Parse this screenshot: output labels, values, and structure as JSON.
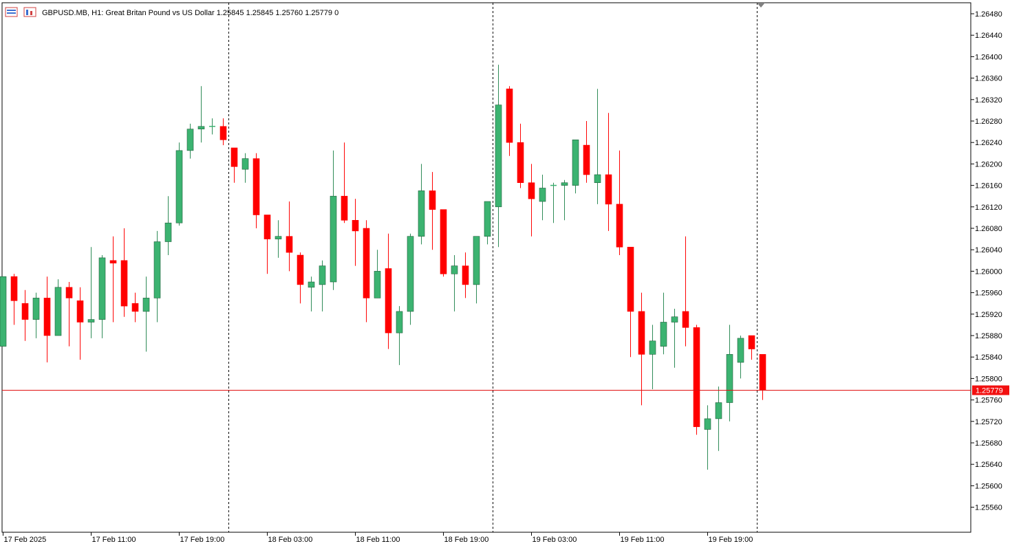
{
  "header": {
    "symbol": "GBPUSD.MB",
    "timeframe": "H1",
    "description": "Great Britan Pound vs US Dollar",
    "ohlc": [
      "1.25845",
      "1.25845",
      "1.25760",
      "1.25779"
    ],
    "tick_volume": "0"
  },
  "current_price_label": "1.25779",
  "colors": {
    "bull": "#3cb371",
    "bear": "#ff0000",
    "border": "#000000",
    "price_line": "#e01010"
  },
  "chart_data": {
    "type": "candlestick",
    "y_axis_side": "right",
    "ylim": [
      1.2552,
      1.2652
    ],
    "y_ticks": [
      "1.26480",
      "1.26440",
      "1.26400",
      "1.26360",
      "1.26320",
      "1.26280",
      "1.26240",
      "1.26200",
      "1.26160",
      "1.26120",
      "1.26080",
      "1.26040",
      "1.26000",
      "1.25960",
      "1.25920",
      "1.25880",
      "1.25840",
      "1.25800",
      "1.25760",
      "1.25720",
      "1.25680",
      "1.25640",
      "1.25600",
      "1.25560"
    ],
    "x_labels": [
      {
        "bar": 0,
        "text": "17 Feb 2025"
      },
      {
        "bar": 8,
        "text": "17 Feb 11:00"
      },
      {
        "bar": 16,
        "text": "17 Feb 19:00"
      },
      {
        "bar": 24,
        "text": "18 Feb 03:00"
      },
      {
        "bar": 32,
        "text": "18 Feb 11:00"
      },
      {
        "bar": 40,
        "text": "18 Feb 19:00"
      },
      {
        "bar": 48,
        "text": "19 Feb 03:00"
      },
      {
        "bar": 56,
        "text": "19 Feb 11:00"
      },
      {
        "bar": 64,
        "text": "19 Feb 19:00"
      }
    ],
    "period_separators_after_bar": [
      20.5,
      44.5,
      68.5
    ],
    "current_price": 1.25779,
    "candles": [
      {
        "o": 1.2586,
        "h": 1.2599,
        "l": 1.2586,
        "c": 1.2599
      },
      {
        "o": 1.2599,
        "h": 1.25995,
        "l": 1.259,
        "c": 1.25945
      },
      {
        "o": 1.2594,
        "h": 1.25965,
        "l": 1.2587,
        "c": 1.2591
      },
      {
        "o": 1.2591,
        "h": 1.2596,
        "l": 1.25875,
        "c": 1.2595
      },
      {
        "o": 1.2595,
        "h": 1.2599,
        "l": 1.2583,
        "c": 1.2588
      },
      {
        "o": 1.2588,
        "h": 1.25985,
        "l": 1.2588,
        "c": 1.2597
      },
      {
        "o": 1.2597,
        "h": 1.2598,
        "l": 1.2586,
        "c": 1.2595
      },
      {
        "o": 1.25945,
        "h": 1.2597,
        "l": 1.25835,
        "c": 1.25905
      },
      {
        "o": 1.25905,
        "h": 1.26045,
        "l": 1.25875,
        "c": 1.2591
      },
      {
        "o": 1.2591,
        "h": 1.2603,
        "l": 1.25875,
        "c": 1.26025
      },
      {
        "o": 1.2602,
        "h": 1.26065,
        "l": 1.25905,
        "c": 1.26015
      },
      {
        "o": 1.2602,
        "h": 1.2608,
        "l": 1.25915,
        "c": 1.25935
      },
      {
        "o": 1.2594,
        "h": 1.2596,
        "l": 1.25905,
        "c": 1.25925
      },
      {
        "o": 1.25925,
        "h": 1.2599,
        "l": 1.2585,
        "c": 1.2595
      },
      {
        "o": 1.2595,
        "h": 1.26075,
        "l": 1.25905,
        "c": 1.26055
      },
      {
        "o": 1.26055,
        "h": 1.2614,
        "l": 1.2603,
        "c": 1.2609
      },
      {
        "o": 1.2609,
        "h": 1.2624,
        "l": 1.26085,
        "c": 1.26225
      },
      {
        "o": 1.26225,
        "h": 1.26275,
        "l": 1.2621,
        "c": 1.26265
      },
      {
        "o": 1.26265,
        "h": 1.26345,
        "l": 1.2624,
        "c": 1.2627
      },
      {
        "o": 1.2627,
        "h": 1.26285,
        "l": 1.26255,
        "c": 1.2627
      },
      {
        "o": 1.2627,
        "h": 1.26285,
        "l": 1.26235,
        "c": 1.26245
      }
    ],
    "candles_b": [
      {
        "o": 1.2623,
        "h": 1.2623,
        "l": 1.26165,
        "c": 1.26195
      },
      {
        "o": 1.2619,
        "h": 1.2622,
        "l": 1.26165,
        "c": 1.2621
      },
      {
        "o": 1.2621,
        "h": 1.2622,
        "l": 1.2608,
        "c": 1.26105
      },
      {
        "o": 1.26105,
        "h": 1.26105,
        "l": 1.25995,
        "c": 1.2606
      },
      {
        "o": 1.2606,
        "h": 1.26095,
        "l": 1.26025,
        "c": 1.26065
      },
      {
        "o": 1.26065,
        "h": 1.2613,
        "l": 1.26,
        "c": 1.26035
      },
      {
        "o": 1.2603,
        "h": 1.26035,
        "l": 1.2594,
        "c": 1.25975
      },
      {
        "o": 1.2597,
        "h": 1.2599,
        "l": 1.25925,
        "c": 1.2598
      },
      {
        "o": 1.25975,
        "h": 1.2602,
        "l": 1.25925,
        "c": 1.2601
      },
      {
        "o": 1.2598,
        "h": 1.26225,
        "l": 1.25965,
        "c": 1.2614
      },
      {
        "o": 1.2614,
        "h": 1.2624,
        "l": 1.2609,
        "c": 1.26095
      },
      {
        "o": 1.26095,
        "h": 1.26135,
        "l": 1.2601,
        "c": 1.26075
      },
      {
        "o": 1.2608,
        "h": 1.26095,
        "l": 1.25905,
        "c": 1.2595
      },
      {
        "o": 1.2595,
        "h": 1.2604,
        "l": 1.2595,
        "c": 1.26
      },
      {
        "o": 1.26005,
        "h": 1.2607,
        "l": 1.25855,
        "c": 1.25885
      },
      {
        "o": 1.25885,
        "h": 1.25935,
        "l": 1.25825,
        "c": 1.25925
      },
      {
        "o": 1.25925,
        "h": 1.2607,
        "l": 1.259,
        "c": 1.26065
      },
      {
        "o": 1.26065,
        "h": 1.262,
        "l": 1.2605,
        "c": 1.2615
      },
      {
        "o": 1.2615,
        "h": 1.26185,
        "l": 1.2604,
        "c": 1.26115
      },
      {
        "o": 1.26115,
        "h": 1.26115,
        "l": 1.2599,
        "c": 1.25995
      },
      {
        "o": 1.25995,
        "h": 1.2603,
        "l": 1.25925,
        "c": 1.2601
      },
      {
        "o": 1.2601,
        "h": 1.26035,
        "l": 1.2595,
        "c": 1.25975
      },
      {
        "o": 1.25975,
        "h": 1.2606,
        "l": 1.2594,
        "c": 1.26065
      },
      {
        "o": 1.26065,
        "h": 1.2613,
        "l": 1.2605,
        "c": 1.2613
      }
    ],
    "candles_c": [
      {
        "o": 1.2612,
        "h": 1.26385,
        "l": 1.26045,
        "c": 1.2631
      },
      {
        "o": 1.2634,
        "h": 1.26345,
        "l": 1.26215,
        "c": 1.2624
      },
      {
        "o": 1.2624,
        "h": 1.26275,
        "l": 1.26155,
        "c": 1.26165
      },
      {
        "o": 1.26165,
        "h": 1.262,
        "l": 1.26065,
        "c": 1.26135
      },
      {
        "o": 1.2613,
        "h": 1.2618,
        "l": 1.26095,
        "c": 1.26155
      },
      {
        "o": 1.2616,
        "h": 1.26165,
        "l": 1.2609,
        "c": 1.2616
      },
      {
        "o": 1.2616,
        "h": 1.2617,
        "l": 1.26095,
        "c": 1.26165
      },
      {
        "o": 1.2616,
        "h": 1.26245,
        "l": 1.26145,
        "c": 1.26245
      },
      {
        "o": 1.26235,
        "h": 1.2628,
        "l": 1.26165,
        "c": 1.2618
      },
      {
        "o": 1.26165,
        "h": 1.2634,
        "l": 1.26125,
        "c": 1.2618
      },
      {
        "o": 1.2618,
        "h": 1.26295,
        "l": 1.26075,
        "c": 1.26125
      },
      {
        "o": 1.26125,
        "h": 1.26225,
        "l": 1.2603,
        "c": 1.26045
      },
      {
        "o": 1.26045,
        "h": 1.26045,
        "l": 1.2584,
        "c": 1.25925
      },
      {
        "o": 1.25925,
        "h": 1.2596,
        "l": 1.2575,
        "c": 1.25845
      },
      {
        "o": 1.25845,
        "h": 1.259,
        "l": 1.2578,
        "c": 1.2587
      },
      {
        "o": 1.2586,
        "h": 1.2596,
        "l": 1.25845,
        "c": 1.25905
      },
      {
        "o": 1.25905,
        "h": 1.2593,
        "l": 1.2582,
        "c": 1.25915
      },
      {
        "o": 1.25925,
        "h": 1.26065,
        "l": 1.2586,
        "c": 1.25895
      },
      {
        "o": 1.25895,
        "h": 1.259,
        "l": 1.25695,
        "c": 1.2571
      },
      {
        "o": 1.25705,
        "h": 1.2575,
        "l": 1.2563,
        "c": 1.25725
      },
      {
        "o": 1.25725,
        "h": 1.25785,
        "l": 1.25665,
        "c": 1.25755
      },
      {
        "o": 1.25755,
        "h": 1.259,
        "l": 1.2572,
        "c": 1.25845
      },
      {
        "o": 1.2583,
        "h": 1.2588,
        "l": 1.258,
        "c": 1.25875
      },
      {
        "o": 1.2588,
        "h": 1.2588,
        "l": 1.25835,
        "c": 1.25855
      },
      {
        "o": 1.25845,
        "h": 1.25845,
        "l": 1.2576,
        "c": 1.25779
      }
    ]
  }
}
